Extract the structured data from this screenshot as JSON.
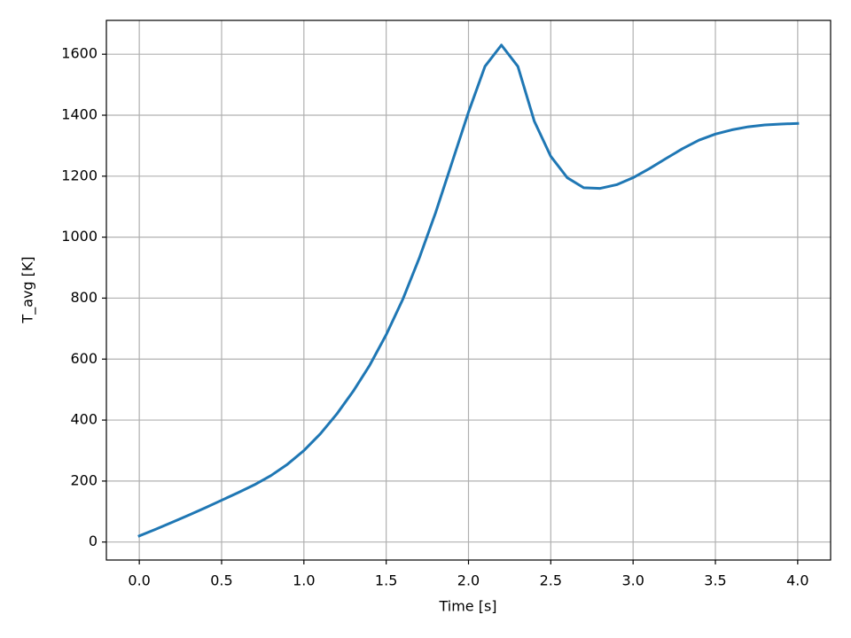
{
  "chart_data": {
    "type": "line",
    "xlabel": "Time [s]",
    "ylabel": "T_avg [K]",
    "x": [
      0.0,
      0.1,
      0.2,
      0.3,
      0.4,
      0.5,
      0.6,
      0.7,
      0.8,
      0.9,
      1.0,
      1.1,
      1.2,
      1.3,
      1.4,
      1.5,
      1.6,
      1.7,
      1.8,
      1.9,
      2.0,
      2.1,
      2.2,
      2.3,
      2.4,
      2.5,
      2.6,
      2.7,
      2.8,
      2.9,
      3.0,
      3.1,
      3.2,
      3.3,
      3.4,
      3.5,
      3.6,
      3.7,
      3.8,
      3.9,
      4.0
    ],
    "series": [
      {
        "color": "#1f77b4",
        "values": [
          20,
          42,
          65,
          88,
          112,
          137,
          162,
          188,
          218,
          255,
          300,
          355,
          420,
          495,
          580,
          680,
          795,
          930,
          1080,
          1245,
          1410,
          1560,
          1630,
          1560,
          1380,
          1265,
          1195,
          1162,
          1160,
          1172,
          1195,
          1225,
          1258,
          1290,
          1318,
          1338,
          1352,
          1362,
          1368,
          1371,
          1373
        ]
      }
    ],
    "xlim": [
      -0.2,
      4.2
    ],
    "ylim": [
      -59,
      1711
    ],
    "xticks": [
      {
        "value": 0,
        "label": "0.0"
      },
      0.5,
      {
        "value": 1,
        "label": "1.0"
      },
      1.5,
      {
        "value": 2,
        "label": "2.0"
      },
      2.5,
      {
        "value": 3,
        "label": "3.0"
      },
      3.5,
      {
        "value": 4,
        "label": "4.0"
      }
    ],
    "yticks": [
      0,
      200,
      400,
      600,
      800,
      1000,
      1200,
      1400,
      1600
    ],
    "grid": true
  }
}
